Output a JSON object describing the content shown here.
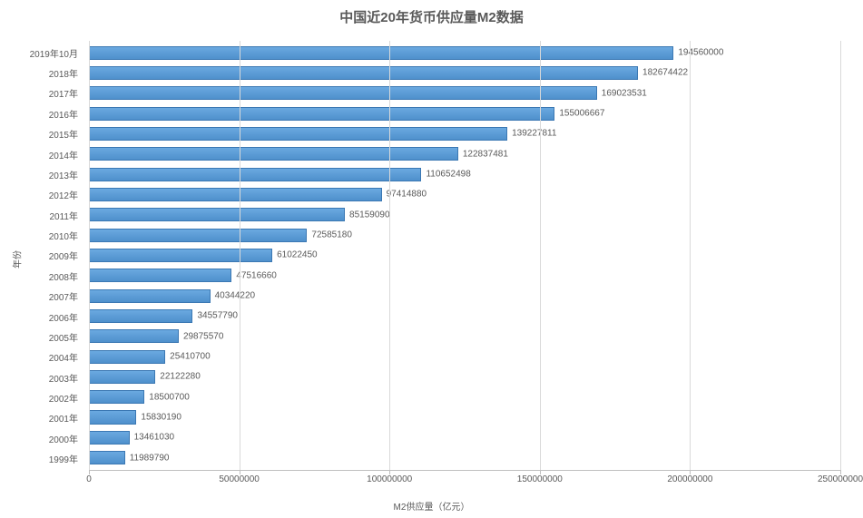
{
  "chart": {
    "type": "bar-horizontal",
    "title": "中国近20年货币供应量M2数据",
    "title_fontsize": 15,
    "title_color": "#595959",
    "background_color": "#ffffff",
    "bar_fill": "#5b9bd5",
    "bar_border": "#3b78b3",
    "grid_color": "#d9d9d9",
    "axis_color": "#bfbfbf",
    "text_color": "#595959",
    "label_fontsize": 10,
    "tick_fontsize": 10,
    "axis_title_fontsize": 10,
    "y_axis_title": "年份",
    "x_axis_title": "M2供应量（亿元）",
    "xlim_min": 0,
    "xlim_max": 250000000,
    "xtick_step": 50000000,
    "xticks": [
      {
        "value": 0,
        "label": "0"
      },
      {
        "value": 50000000,
        "label": "50000000"
      },
      {
        "value": 100000000,
        "label": "100000000"
      },
      {
        "value": 150000000,
        "label": "150000000"
      },
      {
        "value": 200000000,
        "label": "200000000"
      },
      {
        "value": 250000000,
        "label": "250000000"
      }
    ],
    "categories": [
      {
        "label": "2019年10月",
        "value": 194560000,
        "value_label": "194560000"
      },
      {
        "label": "2018年",
        "value": 182674422,
        "value_label": "182674422"
      },
      {
        "label": "2017年",
        "value": 169023531,
        "value_label": "169023531"
      },
      {
        "label": "2016年",
        "value": 155006667,
        "value_label": "155006667"
      },
      {
        "label": "2015年",
        "value": 139227811,
        "value_label": "139227811"
      },
      {
        "label": "2014年",
        "value": 122837481,
        "value_label": "122837481"
      },
      {
        "label": "2013年",
        "value": 110652498,
        "value_label": "110652498"
      },
      {
        "label": "2012年",
        "value": 97414880,
        "value_label": "97414880"
      },
      {
        "label": "2011年",
        "value": 85159090,
        "value_label": "85159090"
      },
      {
        "label": "2010年",
        "value": 72585180,
        "value_label": "72585180"
      },
      {
        "label": "2009年",
        "value": 61022450,
        "value_label": "61022450"
      },
      {
        "label": "2008年",
        "value": 47516660,
        "value_label": "47516660"
      },
      {
        "label": "2007年",
        "value": 40344220,
        "value_label": "40344220"
      },
      {
        "label": "2006年",
        "value": 34557790,
        "value_label": "34557790"
      },
      {
        "label": "2005年",
        "value": 29875570,
        "value_label": "29875570"
      },
      {
        "label": "2004年",
        "value": 25410700,
        "value_label": "25410700"
      },
      {
        "label": "2003年",
        "value": 22122280,
        "value_label": "22122280"
      },
      {
        "label": "2002年",
        "value": 18500700,
        "value_label": "18500700"
      },
      {
        "label": "2001年",
        "value": 15830190,
        "value_label": "15830190"
      },
      {
        "label": "2000年",
        "value": 13461030,
        "value_label": "13461030"
      },
      {
        "label": "1999年",
        "value": 11989790,
        "value_label": "11989790"
      }
    ]
  }
}
